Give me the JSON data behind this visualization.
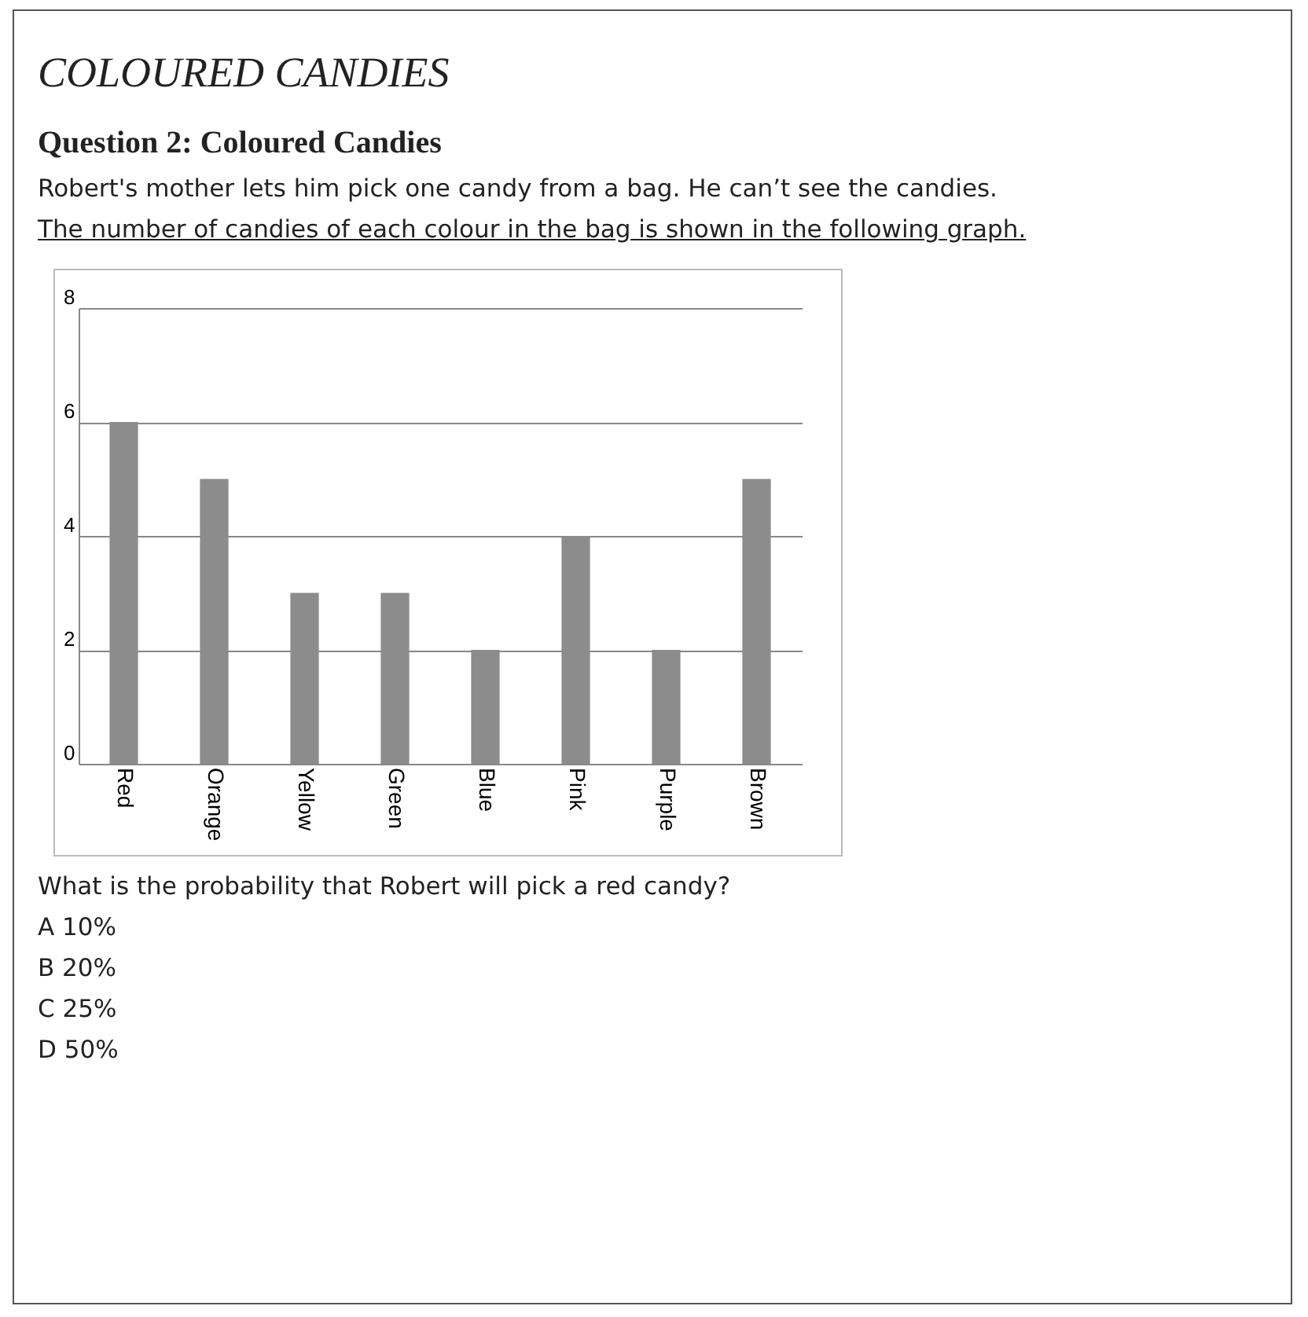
{
  "chart_data": {
    "type": "bar",
    "title": "COLOURED CANDIES",
    "subtitle": "Question 2: Coloured Candies",
    "annotations": [
      "Robert's mother lets him pick one candy from a bag. He can’t see the candies.",
      "The number of candies of each colour in the bag is shown in the following graph.",
      "What is the probability that Robert will pick a red candy?",
      "A 10%",
      "B 20%",
      "C 25%",
      "D 50%"
    ],
    "categories": [
      "Red",
      "Orange",
      "Yellow",
      "Green",
      "Blue",
      "Pink",
      "Purple",
      "Brown"
    ],
    "values": [
      6,
      5,
      3,
      3,
      2,
      4,
      2,
      5
    ],
    "color": "#8c8c8c",
    "ylim": [
      0,
      8
    ],
    "yticks": [
      0,
      2,
      4,
      6,
      8
    ],
    "grid": "y"
  }
}
